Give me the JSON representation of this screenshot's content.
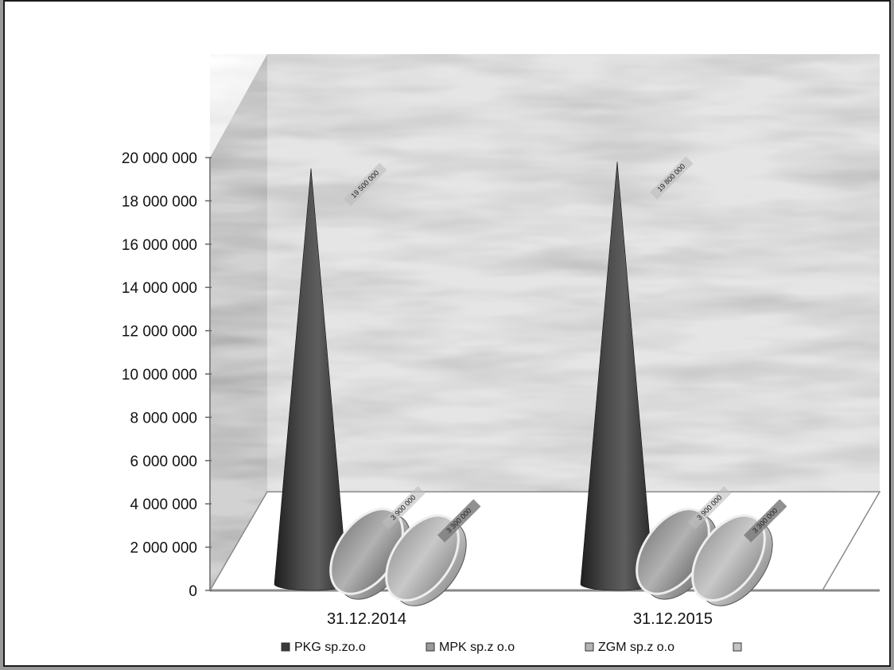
{
  "chart_data": {
    "type": "bar",
    "style": "3d-cone-and-cylinder",
    "categories": [
      "31.12.2014",
      "31.12.2015"
    ],
    "series": [
      {
        "name": "PKG sp.zo.o",
        "shape": "cone",
        "color": "#3a3a3a",
        "values": [
          19500000,
          19800000
        ],
        "data_labels": [
          "19 500 000",
          "19 800 000"
        ]
      },
      {
        "name": "MPK sp.z o.o",
        "shape": "cylinder",
        "color": "#9a9a9a",
        "values": [
          3900000,
          3900000
        ],
        "data_labels": [
          "3 900 000",
          "3 900 000"
        ]
      },
      {
        "name": "ZGM sp.z o.o",
        "shape": "cylinder",
        "color": "#b4b4b4",
        "values": [
          3300000,
          3300000
        ],
        "data_labels": [
          "3 300 000",
          "3 300 000"
        ]
      },
      {
        "name": "",
        "shape": "none",
        "color": "#c4c4c4",
        "values": [
          0,
          0
        ]
      }
    ],
    "y_ticks": [
      "0",
      "2 000 000",
      "4 000 000",
      "6 000 000",
      "8 000 000",
      "10 000 000",
      "12 000 000",
      "14 000 000",
      "16 000 000",
      "18 000 000",
      "20 000 000"
    ],
    "ylim": [
      0,
      20000000
    ],
    "title": "",
    "xlabel": "",
    "ylabel": "",
    "legend": "bottom",
    "background": "textured-gray"
  }
}
